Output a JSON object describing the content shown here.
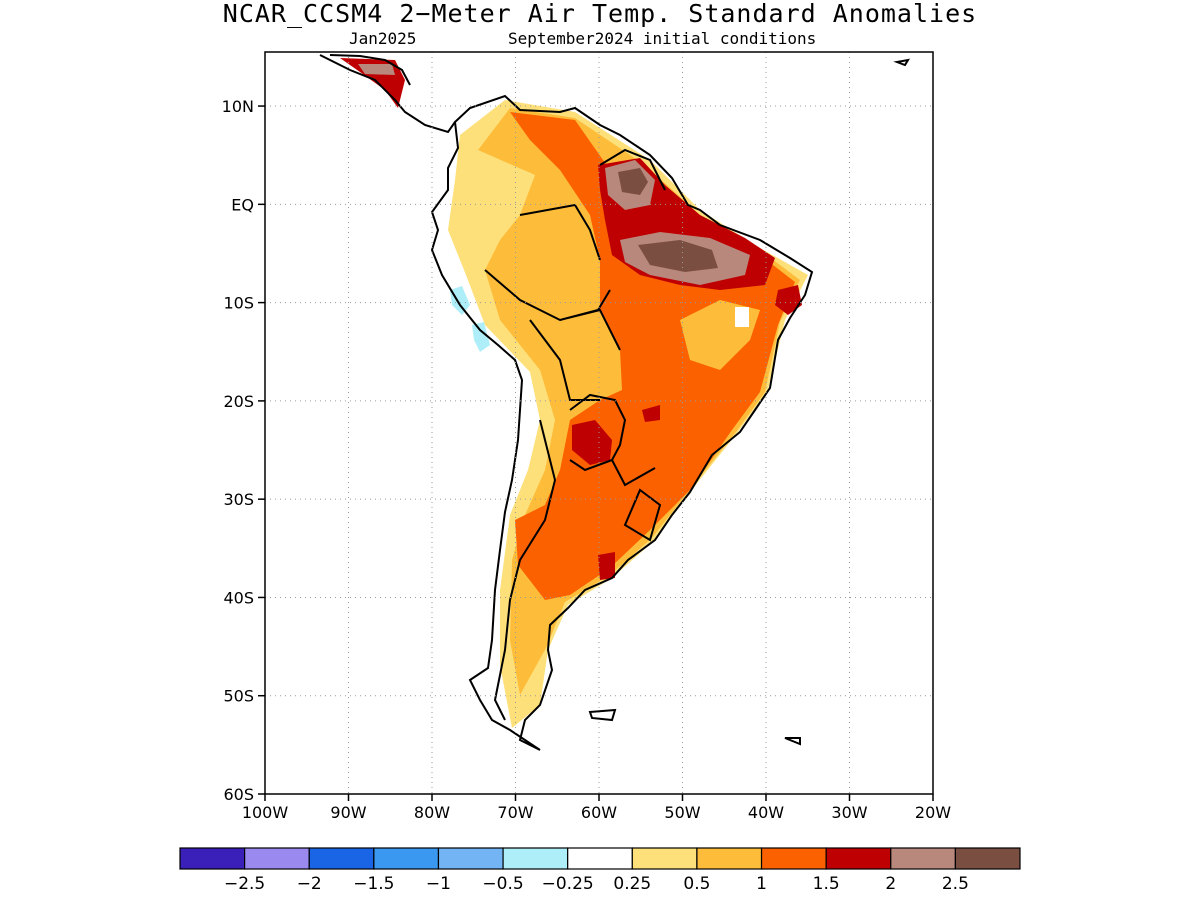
{
  "title": "NCAR_CCSM4 2−Meter Air Temp. Standard Anomalies",
  "subtitle_left": "Jan2025",
  "subtitle_right": "September2024 initial conditions",
  "map": {
    "lat_labels": [
      "10N",
      "EQ",
      "10S",
      "20S",
      "30S",
      "40S",
      "50S",
      "60S"
    ],
    "lon_labels": [
      "100W",
      "90W",
      "80W",
      "70W",
      "60W",
      "50W",
      "40W",
      "30W",
      "20W"
    ],
    "lat_range": [
      -60,
      15.5
    ],
    "lon_range": [
      -100,
      -20
    ]
  },
  "colorbar": {
    "colors": [
      "#3a20b8",
      "#9a8af0",
      "#1a64e6",
      "#3a98f0",
      "#72b4f4",
      "#aeeef8",
      "#ffffff",
      "#fee07a",
      "#fdbd3a",
      "#fc6100",
      "#bf0002",
      "#b8887c",
      "#7a4e40"
    ],
    "labels": [
      "−2.5",
      "−2",
      "−1.5",
      "−1",
      "−0.5",
      "−0.25",
      "0.25",
      "0.5",
      "1",
      "1.5",
      "2",
      "2.5"
    ]
  }
}
